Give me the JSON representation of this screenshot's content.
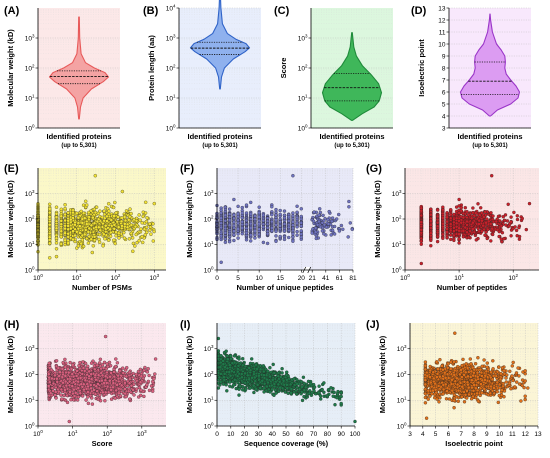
{
  "chart_data": [
    {
      "panel": "(A)",
      "type": "violin",
      "ylabel": "Molecular weight (kD)",
      "xlabel": "Identified proteins",
      "xsub": "(up to 5,301)",
      "yscale": "log",
      "ylim": [
        1,
        10000
      ],
      "yticks": [
        {
          "v": 1,
          "b": "10",
          "e": "0"
        },
        {
          "v": 10,
          "b": "10",
          "e": "1"
        },
        {
          "v": 100,
          "b": "10",
          "e": "2"
        },
        {
          "v": 1000,
          "b": "10",
          "e": "3"
        }
      ],
      "quartiles": [
        30,
        52,
        80
      ],
      "profile": [
        [
          2,
          0.01
        ],
        [
          5,
          0.05
        ],
        [
          10,
          0.14
        ],
        [
          20,
          0.42
        ],
        [
          35,
          0.82
        ],
        [
          50,
          1.0
        ],
        [
          70,
          0.88
        ],
        [
          100,
          0.52
        ],
        [
          150,
          0.22
        ],
        [
          300,
          0.07
        ],
        [
          1000,
          0.025
        ],
        [
          5000,
          0.01
        ]
      ],
      "color": "#e85a5a",
      "fill": "#f4a3a3",
      "bg": "#fce8e8"
    },
    {
      "panel": "(B)",
      "type": "violin",
      "ylabel": "Protein length (aa)",
      "xlabel": "Identified proteins",
      "xsub": "(up to 5,301)",
      "yscale": "log",
      "ylim": [
        1,
        10000
      ],
      "yticks": [
        {
          "v": 1,
          "b": "10",
          "e": "0"
        },
        {
          "v": 10,
          "b": "10",
          "e": "1"
        },
        {
          "v": 100,
          "b": "10",
          "e": "2"
        },
        {
          "v": 1000,
          "b": "10",
          "e": "3"
        },
        {
          "v": 10000,
          "b": "10",
          "e": "4"
        }
      ],
      "quartiles": [
        280,
        460,
        720
      ],
      "profile": [
        [
          20,
          0.01
        ],
        [
          50,
          0.05
        ],
        [
          100,
          0.15
        ],
        [
          200,
          0.45
        ],
        [
          350,
          0.85
        ],
        [
          470,
          1.0
        ],
        [
          650,
          0.88
        ],
        [
          900,
          0.55
        ],
        [
          1400,
          0.25
        ],
        [
          3000,
          0.08
        ],
        [
          10000,
          0.03
        ],
        [
          33000,
          0.01
        ]
      ],
      "color": "#2f63c8",
      "fill": "#8fb1ee",
      "bg": "#e8eefc"
    },
    {
      "panel": "(C)",
      "type": "violin",
      "ylabel": "Score",
      "xlabel": "Identified proteins",
      "xsub": "(up to 5,301)",
      "yscale": "log",
      "ylim": [
        1,
        10000
      ],
      "yticks": [
        {
          "v": 1,
          "b": "10",
          "e": "0"
        },
        {
          "v": 10,
          "b": "10",
          "e": "1"
        },
        {
          "v": 100,
          "b": "10",
          "e": "2"
        },
        {
          "v": 1000,
          "b": "10",
          "e": "3"
        }
      ],
      "quartiles": [
        8,
        22,
        65
      ],
      "profile": [
        [
          1.8,
          0.02
        ],
        [
          3,
          0.35
        ],
        [
          5,
          0.75
        ],
        [
          8,
          0.92
        ],
        [
          15,
          1.0
        ],
        [
          30,
          0.9
        ],
        [
          60,
          0.65
        ],
        [
          120,
          0.35
        ],
        [
          250,
          0.15
        ],
        [
          500,
          0.06
        ],
        [
          1500,
          0.01
        ]
      ],
      "color": "#1f8a3a",
      "fill": "#3fb75a",
      "bg": "#dcf7de"
    },
    {
      "panel": "(D)",
      "type": "violin",
      "ylabel": "Isoelectric point",
      "xlabel": "Identified proteins",
      "xsub": "(up to 5,301)",
      "yscale": "linear",
      "ylim": [
        3,
        13
      ],
      "yticks": [
        {
          "v": 3,
          "t": "3"
        },
        {
          "v": 4,
          "t": "4"
        },
        {
          "v": 5,
          "t": "5"
        },
        {
          "v": 6,
          "t": "6"
        },
        {
          "v": 7,
          "t": "7"
        },
        {
          "v": 8,
          "t": "8"
        },
        {
          "v": 9,
          "t": "9"
        },
        {
          "v": 10,
          "t": "10"
        },
        {
          "v": 11,
          "t": "11"
        },
        {
          "v": 12,
          "t": "12"
        },
        {
          "v": 13,
          "t": "13"
        }
      ],
      "quartiles": [
        5.8,
        6.9,
        8.5
      ],
      "profile": [
        [
          4.0,
          0.02
        ],
        [
          4.5,
          0.25
        ],
        [
          5.0,
          0.7
        ],
        [
          5.5,
          0.95
        ],
        [
          6.0,
          1.0
        ],
        [
          6.5,
          0.88
        ],
        [
          7.0,
          0.7
        ],
        [
          7.5,
          0.55
        ],
        [
          8.0,
          0.5
        ],
        [
          8.5,
          0.52
        ],
        [
          9.0,
          0.5
        ],
        [
          9.5,
          0.38
        ],
        [
          10.0,
          0.22
        ],
        [
          11.0,
          0.08
        ],
        [
          12.0,
          0.02
        ],
        [
          12.5,
          0.005
        ]
      ],
      "color": "#9a35c8",
      "fill": "#dc9cf2",
      "bg": "#f8e8fc"
    },
    {
      "panel": "(E)",
      "type": "scatter",
      "ylabel": "Molecular weight (kD)",
      "xlabel": "Number of PSMs",
      "xscale": "log",
      "xlim": [
        1,
        2000
      ],
      "yscale": "log",
      "ylim": [
        1,
        10000
      ],
      "xticks": [
        {
          "v": 1,
          "b": "10",
          "e": "0"
        },
        {
          "v": 10,
          "b": "10",
          "e": "1"
        },
        {
          "v": 100,
          "b": "10",
          "e": "2"
        },
        {
          "v": 1000,
          "b": "10",
          "e": "3"
        }
      ],
      "yticks": [
        {
          "v": 1,
          "b": "10",
          "e": "0"
        },
        {
          "v": 10,
          "b": "10",
          "e": "1"
        },
        {
          "v": 100,
          "b": "10",
          "e": "2"
        },
        {
          "v": 1000,
          "b": "10",
          "e": "3"
        }
      ],
      "cloud": {
        "xmin": 1,
        "xmax": 1000,
        "xpeak": 10,
        "ycenter": 55,
        "yspread": 0.55,
        "n": 1400,
        "discrete": true
      },
      "outliers": [
        [
          30,
          5000
        ],
        [
          2,
          3
        ],
        [
          600,
          450
        ],
        [
          1000,
          400
        ],
        [
          150,
          1200
        ]
      ],
      "color": "#f2e233",
      "bg": "#fbf8c8"
    },
    {
      "panel": "(F)",
      "type": "scatter",
      "ylabel": "Molecular weight (kD)",
      "xlabel": "Number of unique peptides",
      "xscale": "broken",
      "xlim": [
        0,
        81
      ],
      "yscale": "log",
      "ylim": [
        1,
        10000
      ],
      "xticks": [
        {
          "v": 0,
          "t": "0"
        },
        {
          "v": 5,
          "t": "5"
        },
        {
          "v": 10,
          "t": "10"
        },
        {
          "v": 15,
          "t": "15"
        },
        {
          "v": 20,
          "t": "20"
        },
        {
          "v": 21,
          "t": "21"
        },
        {
          "v": 41,
          "t": "41"
        },
        {
          "v": 61,
          "t": "61"
        },
        {
          "v": 81,
          "t": "81"
        }
      ],
      "yticks": [
        {
          "v": 1,
          "b": "10",
          "e": "0"
        },
        {
          "v": 10,
          "b": "10",
          "e": "1"
        },
        {
          "v": 100,
          "b": "10",
          "e": "2"
        },
        {
          "v": 1000,
          "b": "10",
          "e": "3"
        }
      ],
      "cloud": {
        "xmin": 0,
        "xmax": 80,
        "xpeak": 3,
        "ycenter": 60,
        "yspread": 0.5,
        "n": 1000,
        "discrete": true
      },
      "outliers": [
        [
          1,
          2
        ],
        [
          18,
          5000
        ],
        [
          60,
          150
        ],
        [
          75,
          300
        ]
      ],
      "color": "#6f73c0",
      "bg": "#e8e9f8"
    },
    {
      "panel": "(G)",
      "type": "scatter",
      "ylabel": "Molecular weight (kD)",
      "xlabel": "Number of peptides",
      "xscale": "log",
      "xlim": [
        1,
        300
      ],
      "yscale": "log",
      "ylim": [
        1,
        10000
      ],
      "xticks": [
        {
          "v": 1,
          "b": "10",
          "e": "0"
        },
        {
          "v": 10,
          "b": "10",
          "e": "1"
        },
        {
          "v": 100,
          "b": "10",
          "e": "2"
        }
      ],
      "yticks": [
        {
          "v": 1,
          "b": "10",
          "e": "0"
        },
        {
          "v": 10,
          "b": "10",
          "e": "1"
        },
        {
          "v": 100,
          "b": "10",
          "e": "2"
        },
        {
          "v": 1000,
          "b": "10",
          "e": "3"
        }
      ],
      "cloud": {
        "xmin": 2,
        "xmax": 200,
        "xpeak": 6,
        "ycenter": 60,
        "yspread": 0.5,
        "n": 1200,
        "discrete": true
      },
      "outliers": [
        [
          2,
          1.8
        ],
        [
          40,
          5000
        ],
        [
          200,
          400
        ]
      ],
      "color": "#c8202a",
      "bg": "#fbe6e6"
    },
    {
      "panel": "(H)",
      "type": "scatter",
      "ylabel": "Molecular weight (kD)",
      "xlabel": "Score",
      "xscale": "log",
      "xlim": [
        1,
        5000
      ],
      "yscale": "log",
      "ylim": [
        1,
        10000
      ],
      "xticks": [
        {
          "v": 1,
          "b": "10",
          "e": "0"
        },
        {
          "v": 10,
          "b": "10",
          "e": "1"
        },
        {
          "v": 100,
          "b": "10",
          "e": "2"
        },
        {
          "v": 1000,
          "b": "10",
          "e": "3"
        }
      ],
      "yticks": [
        {
          "v": 1,
          "b": "10",
          "e": "0"
        },
        {
          "v": 10,
          "b": "10",
          "e": "1"
        },
        {
          "v": 100,
          "b": "10",
          "e": "2"
        },
        {
          "v": 1000,
          "b": "10",
          "e": "3"
        }
      ],
      "cloud": {
        "xmin": 2,
        "xmax": 2500,
        "xpeak": 25,
        "ycenter": 55,
        "yspread": 0.55,
        "n": 1500,
        "discrete": false
      },
      "outliers": [
        [
          90,
          3000
        ],
        [
          8,
          1.5
        ],
        [
          2500,
          400
        ]
      ],
      "color": "#d9607f",
      "bg": "#fbe8ee"
    },
    {
      "panel": "(I)",
      "type": "scatter",
      "ylabel": "Molecular weight (kD)",
      "xlabel": "Sequence coverage (%)",
      "xscale": "linear",
      "xlim": [
        0,
        100
      ],
      "yscale": "log",
      "ylim": [
        1,
        10000
      ],
      "xticks": [
        {
          "v": 0,
          "t": "0"
        },
        {
          "v": 10,
          "t": "10"
        },
        {
          "v": 20,
          "t": "20"
        },
        {
          "v": 30,
          "t": "30"
        },
        {
          "v": 40,
          "t": "40"
        },
        {
          "v": 50,
          "t": "50"
        },
        {
          "v": 60,
          "t": "60"
        },
        {
          "v": 70,
          "t": "70"
        },
        {
          "v": 80,
          "t": "80"
        },
        {
          "v": 90,
          "t": "90"
        },
        {
          "v": 100,
          "t": "100"
        }
      ],
      "yticks": [
        {
          "v": 1,
          "b": "10",
          "e": "0"
        },
        {
          "v": 10,
          "b": "10",
          "e": "1"
        },
        {
          "v": 100,
          "b": "10",
          "e": "2"
        },
        {
          "v": 1000,
          "b": "10",
          "e": "3"
        }
      ],
      "cloud": {
        "xmin": 1,
        "xmax": 90,
        "xpeak": 10,
        "ycenter": 55,
        "yspread": 0.5,
        "n": 1400,
        "discrete": false,
        "decay": true
      },
      "outliers": [
        [
          1,
          2500
        ],
        [
          100,
          1.5
        ],
        [
          80,
          15
        ]
      ],
      "color": "#1f7a4a",
      "bg": "#e6eef7"
    },
    {
      "panel": "(J)",
      "type": "scatter",
      "ylabel": "Molecular weight (kD)",
      "xlabel": "Isoelectric point",
      "xscale": "linear",
      "xlim": [
        3,
        13
      ],
      "yscale": "log",
      "ylim": [
        1,
        10000
      ],
      "xticks": [
        {
          "v": 3,
          "t": "3"
        },
        {
          "v": 4,
          "t": "4"
        },
        {
          "v": 5,
          "t": "5"
        },
        {
          "v": 6,
          "t": "6"
        },
        {
          "v": 7,
          "t": "7"
        },
        {
          "v": 8,
          "t": "8"
        },
        {
          "v": 9,
          "t": "9"
        },
        {
          "v": 10,
          "t": "10"
        },
        {
          "v": 11,
          "t": "11"
        },
        {
          "v": 12,
          "t": "12"
        },
        {
          "v": 13,
          "t": "13"
        }
      ],
      "yticks": [
        {
          "v": 1,
          "b": "10",
          "e": "0"
        },
        {
          "v": 10,
          "b": "10",
          "e": "1"
        },
        {
          "v": 100,
          "b": "10",
          "e": "2"
        },
        {
          "v": 1000,
          "b": "10",
          "e": "3"
        }
      ],
      "cloud": {
        "xmin": 4.2,
        "xmax": 12,
        "xpeak": 6,
        "ycenter": 55,
        "yspread": 0.55,
        "n": 1400,
        "discrete": false
      },
      "outliers": [
        [
          6.5,
          4000
        ],
        [
          4.3,
          2
        ],
        [
          12.2,
          30
        ]
      ],
      "color": "#e0701a",
      "bg": "#fbf5d6"
    }
  ]
}
